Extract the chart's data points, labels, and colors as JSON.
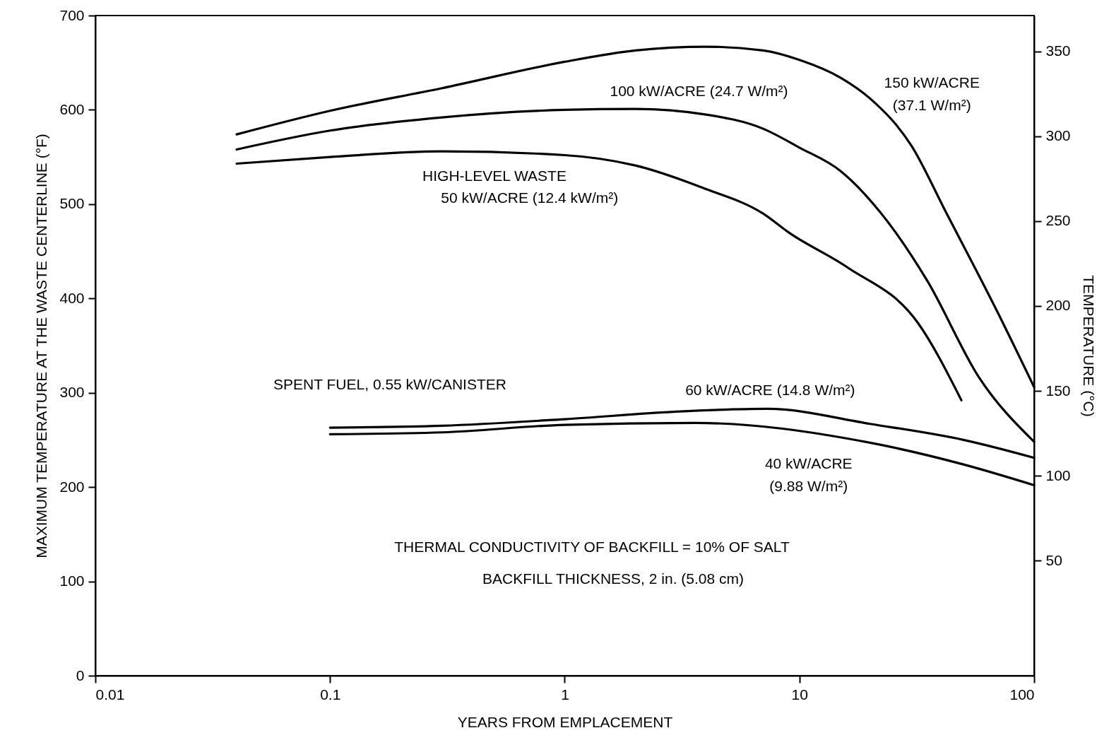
{
  "chart_data": {
    "type": "line",
    "xlabel": "YEARS FROM EMPLACEMENT",
    "ylabel": "MAXIMUM TEMPERATURE AT THE WASTE CENTERLINE (°F)",
    "y2label": "TEMPERATURE (°C)",
    "log": "x",
    "xlim": [
      0.01,
      100
    ],
    "xticks": [
      0.01,
      0.1,
      1,
      10,
      100
    ],
    "ylim": [
      0,
      700
    ],
    "yticks": [
      0,
      100,
      200,
      300,
      400,
      500,
      600,
      700
    ],
    "y2lim": [
      -17.8,
      371.1
    ],
    "y2ticks": [
      50,
      100,
      150,
      200,
      250,
      300,
      350
    ],
    "grid": false,
    "series": [
      {
        "name": "150 kW/ACRE (37.1 W/m²)",
        "color": "#000000",
        "x": [
          0.04,
          0.1,
          0.3,
          1,
          2,
          4,
          7,
          10,
          15,
          20,
          30,
          42,
          70,
          100
        ],
        "values": [
          574,
          599,
          623,
          651,
          663,
          667,
          663,
          653,
          634,
          612,
          562,
          492,
          385,
          306
        ]
      },
      {
        "name": "100 kW/ACRE (24.7 W/m²)",
        "color": "#000000",
        "x": [
          0.04,
          0.1,
          0.3,
          1,
          2,
          4,
          7,
          10,
          15,
          22,
          35,
          58,
          100
        ],
        "values": [
          558,
          578,
          592,
          600,
          601,
          595,
          580,
          560,
          535,
          492,
          419,
          317,
          248
        ]
      },
      {
        "name": "50 kW/ACRE (12.4 kW/m²)",
        "color": "#000000",
        "x": [
          0.04,
          0.1,
          0.3,
          1,
          2,
          4,
          7,
          9,
          16,
          32,
          49
        ],
        "values": [
          543,
          550,
          556,
          552,
          541,
          516,
          490,
          470,
          433,
          374,
          292
        ]
      },
      {
        "name": "60 kW/ACRE (14.8 W/m²)",
        "color": "#000000",
        "x": [
          0.1,
          0.3,
          1,
          3,
          7.3,
          20,
          50,
          100
        ],
        "values": [
          263,
          265,
          272,
          280,
          283,
          267,
          250,
          231
        ]
      },
      {
        "name": "40 kW/ACRE (9.88 W/m²)",
        "color": "#000000",
        "x": [
          0.1,
          0.3,
          1,
          3.6,
          20,
          50,
          100
        ],
        "values": [
          256,
          258,
          266,
          268,
          247,
          224,
          202
        ]
      }
    ],
    "annotations": [
      "SPENT FUEL, 0.55 kW/CANISTER",
      "HIGH-LEVEL WASTE",
      "THERMAL CONDUCTIVITY OF BACKFILL = 10% OF SALT",
      "BACKFILL THICKNESS, 2 in. (5.08 cm)"
    ]
  }
}
